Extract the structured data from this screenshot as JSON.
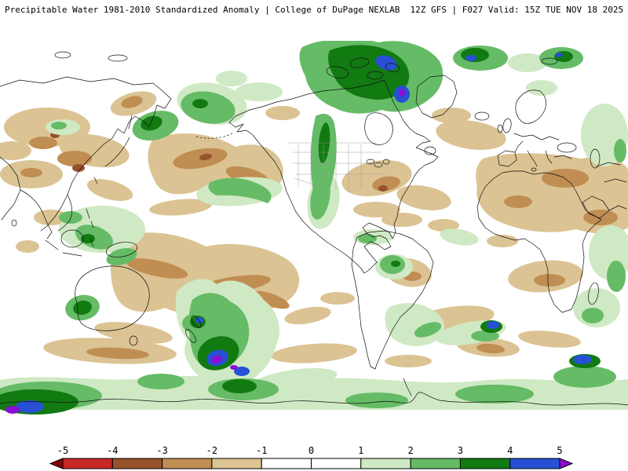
{
  "header": {
    "title": "Precipitable Water 1981-2010 Standardized Anomaly | College of DuPage NEXLAB  12Z GFS | F027 Valid: 15Z TUE NOV 18 2025"
  },
  "colorbar": {
    "ticks": [
      "-5",
      "-4",
      "-3",
      "-2",
      "-1",
      "0",
      "1",
      "2",
      "3",
      "4",
      "5"
    ],
    "segment_colors": [
      "#8b0000",
      "#c62828",
      "#96522a",
      "#c08d52",
      "#dbc393",
      "#ffffff",
      "#ffffff",
      "#cfe9c4",
      "#66bb66",
      "#117a11",
      "#2750d6",
      "#8a0fd4"
    ]
  },
  "chart_data": {
    "type": "heatmap",
    "title": "Precipitable Water 1981-2010 Standardized Anomaly",
    "source": "College of DuPage NEXLAB",
    "model_run": "12Z GFS",
    "forecast_hour": "F027",
    "valid_time": "15Z TUE NOV 18 2025",
    "scale_ticks": [
      -5,
      -4,
      -3,
      -2,
      -1,
      0,
      1,
      2,
      3,
      4,
      5
    ],
    "scale_colors": [
      "#8b0000",
      "#c62828",
      "#96522a",
      "#c08d52",
      "#dbc393",
      "#ffffff",
      "#ffffff",
      "#cfe9c4",
      "#66bb66",
      "#117a11",
      "#2750d6",
      "#8a0fd4"
    ],
    "legend_position": "bottom",
    "projection": "equirectangular world map, Pacific/Americas centered"
  }
}
